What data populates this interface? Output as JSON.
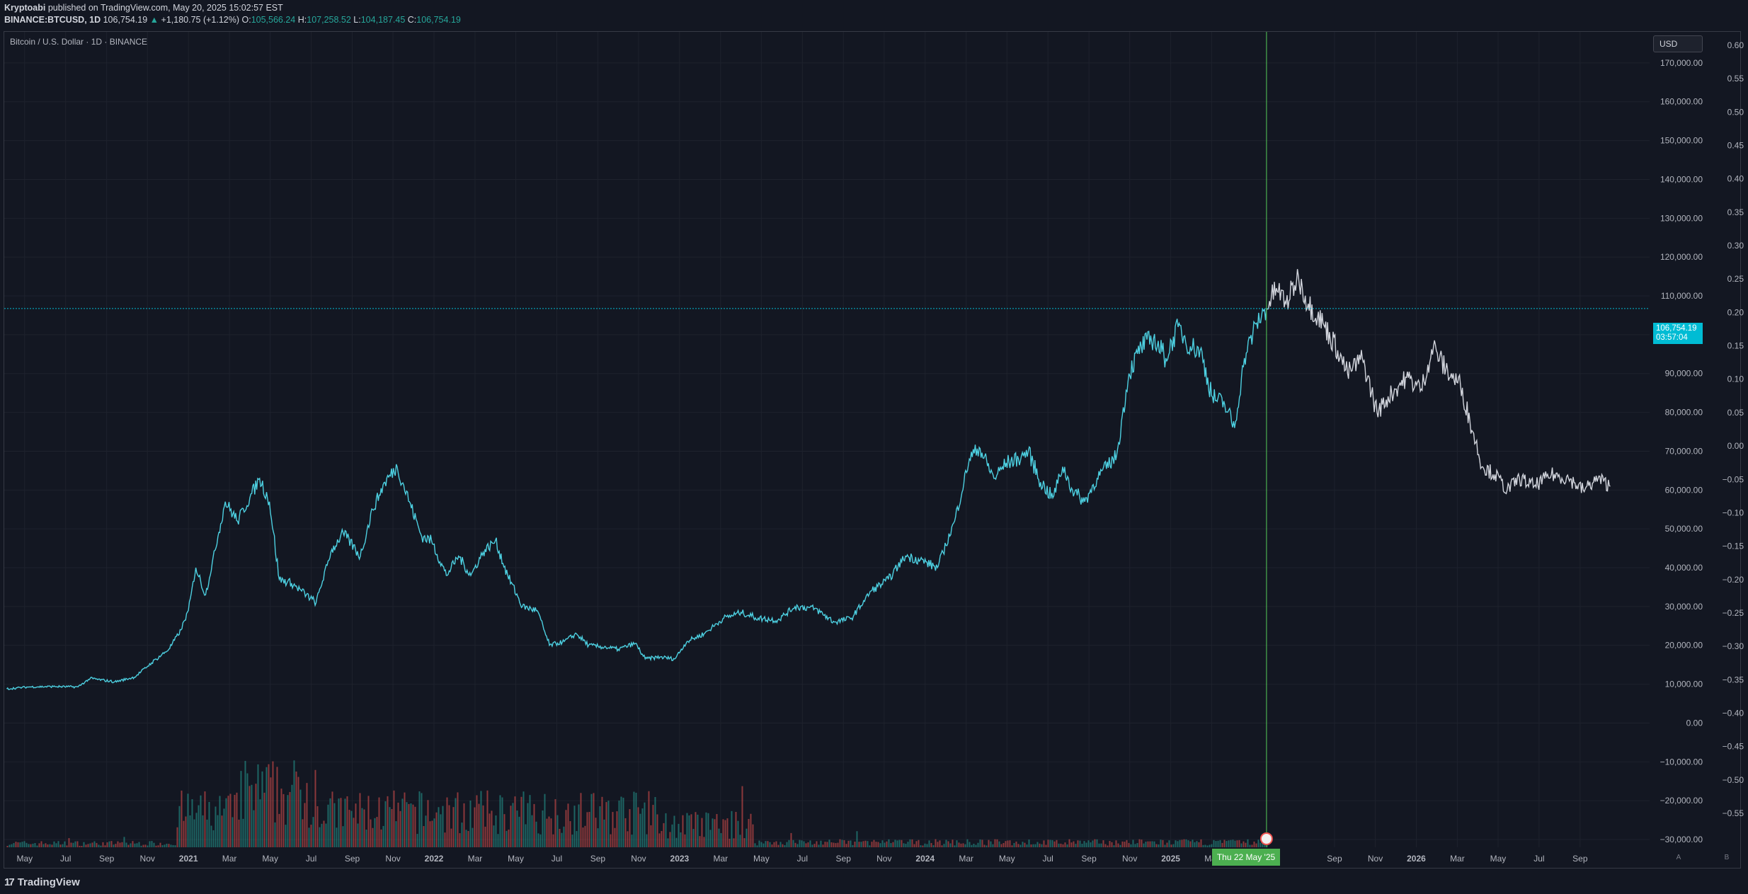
{
  "header": {
    "author": "Kryptoabi",
    "published_text": "published on TradingView.com, May 20, 2025 15:02:57 EST",
    "symbol": "BINANCE:BTCUSD, 1D",
    "last_price": "106,754.19",
    "change": "+1,180.75 (+1.12%)",
    "o_label": "O:",
    "o_value": "105,566.24",
    "h_label": "H:",
    "h_value": "107,258.52",
    "l_label": "L:",
    "l_value": "104,187.45",
    "c_label": "C:",
    "c_value": "106,754.19"
  },
  "chart": {
    "symbol_title": "Bitcoin / U.S. Dollar · 1D · BINANCE",
    "currency": "USD",
    "price_tag": "106,754.19",
    "countdown": "03:57:04",
    "cursor_date": "Thu 22 May '25",
    "scale_auto": "A",
    "scale_log": "B"
  },
  "chart_data": {
    "type": "line",
    "title": "Bitcoin / U.S. Dollar · 1D · BINANCE",
    "price_axis_labels": [
      "170,000.00",
      "160,000.00",
      "150,000.00",
      "140,000.00",
      "130,000.00",
      "120,000.00",
      "110,000.00",
      "100,000.00",
      "90,000.00",
      "80,000.00",
      "70,000.00",
      "60,000.00",
      "50,000.00",
      "40,000.00",
      "30,000.00",
      "20,000.00",
      "10,000.00",
      "0.00",
      "−10,000.00",
      "−20,000.00",
      "−30,000.00"
    ],
    "price_axis_values": [
      170000,
      160000,
      150000,
      140000,
      130000,
      120000,
      110000,
      100000,
      90000,
      80000,
      70000,
      60000,
      50000,
      40000,
      30000,
      20000,
      10000,
      0,
      -10000,
      -20000,
      -30000
    ],
    "secondary_axis_labels": [
      "0.60",
      "0.55",
      "0.50",
      "0.45",
      "0.40",
      "0.35",
      "0.30",
      "0.25",
      "0.20",
      "0.15",
      "0.10",
      "0.05",
      "0.00",
      "−0.05",
      "−0.10",
      "−0.15",
      "−0.20",
      "−0.25",
      "−0.30",
      "−0.35",
      "−0.40",
      "−0.45",
      "−0.50",
      "−0.55"
    ],
    "secondary_axis_values": [
      0.6,
      0.55,
      0.5,
      0.45,
      0.4,
      0.35,
      0.3,
      0.25,
      0.2,
      0.15,
      0.1,
      0.05,
      0,
      -0.05,
      -0.1,
      -0.15,
      -0.2,
      -0.25,
      -0.3,
      -0.35,
      -0.4,
      -0.45,
      -0.5,
      -0.55
    ],
    "time_axis": [
      {
        "label": "May",
        "t": 2020.333,
        "bold": false
      },
      {
        "label": "Jul",
        "t": 2020.5,
        "bold": false
      },
      {
        "label": "Sep",
        "t": 2020.667,
        "bold": false
      },
      {
        "label": "Nov",
        "t": 2020.833,
        "bold": false
      },
      {
        "label": "2021",
        "t": 2021.0,
        "bold": true
      },
      {
        "label": "Mar",
        "t": 2021.167,
        "bold": false
      },
      {
        "label": "May",
        "t": 2021.333,
        "bold": false
      },
      {
        "label": "Jul",
        "t": 2021.5,
        "bold": false
      },
      {
        "label": "Sep",
        "t": 2021.667,
        "bold": false
      },
      {
        "label": "Nov",
        "t": 2021.833,
        "bold": false
      },
      {
        "label": "2022",
        "t": 2022.0,
        "bold": true
      },
      {
        "label": "Mar",
        "t": 2022.167,
        "bold": false
      },
      {
        "label": "May",
        "t": 2022.333,
        "bold": false
      },
      {
        "label": "Jul",
        "t": 2022.5,
        "bold": false
      },
      {
        "label": "Sep",
        "t": 2022.667,
        "bold": false
      },
      {
        "label": "Nov",
        "t": 2022.833,
        "bold": false
      },
      {
        "label": "2023",
        "t": 2023.0,
        "bold": true
      },
      {
        "label": "Mar",
        "t": 2023.167,
        "bold": false
      },
      {
        "label": "May",
        "t": 2023.333,
        "bold": false
      },
      {
        "label": "Jul",
        "t": 2023.5,
        "bold": false
      },
      {
        "label": "Sep",
        "t": 2023.667,
        "bold": false
      },
      {
        "label": "Nov",
        "t": 2023.833,
        "bold": false
      },
      {
        "label": "2024",
        "t": 2024.0,
        "bold": true
      },
      {
        "label": "Mar",
        "t": 2024.167,
        "bold": false
      },
      {
        "label": "May",
        "t": 2024.333,
        "bold": false
      },
      {
        "label": "Jul",
        "t": 2024.5,
        "bold": false
      },
      {
        "label": "Sep",
        "t": 2024.667,
        "bold": false
      },
      {
        "label": "Nov",
        "t": 2024.833,
        "bold": false
      },
      {
        "label": "2025",
        "t": 2025.0,
        "bold": true
      },
      {
        "label": "Mar",
        "t": 2025.167,
        "bold": false
      },
      {
        "label": "Sep",
        "t": 2025.667,
        "bold": false
      },
      {
        "label": "Nov",
        "t": 2025.833,
        "bold": false
      },
      {
        "label": "2026",
        "t": 2026.0,
        "bold": true
      },
      {
        "label": "Mar",
        "t": 2026.167,
        "bold": false
      },
      {
        "label": "May",
        "t": 2026.333,
        "bold": false
      },
      {
        "label": "Jul",
        "t": 2026.5,
        "bold": false
      },
      {
        "label": "Sep",
        "t": 2026.667,
        "bold": false
      }
    ],
    "x_range": [
      2020.25,
      2026.95
    ],
    "y_range": [
      -32000,
      178000
    ],
    "current_price": 106754.19,
    "cursor_t": 2025.39,
    "series": [
      {
        "name": "BTCUSD historical",
        "color": "#4dd0e1",
        "points": [
          [
            2020.26,
            8800
          ],
          [
            2020.35,
            9300
          ],
          [
            2020.45,
            9400
          ],
          [
            2020.55,
            9300
          ],
          [
            2020.6,
            11500
          ],
          [
            2020.7,
            10600
          ],
          [
            2020.78,
            11800
          ],
          [
            2020.85,
            15500
          ],
          [
            2020.92,
            19000
          ],
          [
            2020.97,
            24000
          ],
          [
            2021.0,
            29000
          ],
          [
            2021.03,
            40000
          ],
          [
            2021.07,
            33000
          ],
          [
            2021.12,
            48000
          ],
          [
            2021.15,
            57000
          ],
          [
            2021.2,
            52000
          ],
          [
            2021.25,
            58000
          ],
          [
            2021.29,
            63000
          ],
          [
            2021.33,
            57000
          ],
          [
            2021.37,
            37000
          ],
          [
            2021.42,
            36000
          ],
          [
            2021.48,
            33000
          ],
          [
            2021.52,
            31000
          ],
          [
            2021.58,
            44000
          ],
          [
            2021.63,
            49000
          ],
          [
            2021.7,
            43000
          ],
          [
            2021.75,
            55000
          ],
          [
            2021.8,
            62000
          ],
          [
            2021.85,
            66000
          ],
          [
            2021.9,
            57000
          ],
          [
            2021.95,
            48000
          ],
          [
            2021.99,
            47000
          ],
          [
            2022.05,
            38000
          ],
          [
            2022.1,
            43000
          ],
          [
            2022.15,
            38000
          ],
          [
            2022.2,
            44000
          ],
          [
            2022.25,
            47000
          ],
          [
            2022.3,
            38000
          ],
          [
            2022.36,
            30000
          ],
          [
            2022.42,
            29000
          ],
          [
            2022.47,
            20000
          ],
          [
            2022.53,
            21000
          ],
          [
            2022.58,
            23000
          ],
          [
            2022.63,
            20000
          ],
          [
            2022.7,
            19500
          ],
          [
            2022.75,
            19000
          ],
          [
            2022.82,
            20500
          ],
          [
            2022.86,
            16500
          ],
          [
            2022.92,
            17000
          ],
          [
            2022.98,
            16500
          ],
          [
            2023.03,
            21000
          ],
          [
            2023.1,
            23000
          ],
          [
            2023.18,
            27000
          ],
          [
            2023.25,
            28500
          ],
          [
            2023.32,
            27000
          ],
          [
            2023.4,
            26500
          ],
          [
            2023.47,
            30000
          ],
          [
            2023.55,
            29500
          ],
          [
            2023.63,
            26000
          ],
          [
            2023.7,
            27000
          ],
          [
            2023.78,
            34000
          ],
          [
            2023.85,
            37000
          ],
          [
            2023.92,
            43000
          ],
          [
            2023.98,
            42000
          ],
          [
            2024.05,
            40000
          ],
          [
            2024.12,
            52000
          ],
          [
            2024.18,
            68000
          ],
          [
            2024.22,
            71000
          ],
          [
            2024.28,
            63000
          ],
          [
            2024.33,
            67000
          ],
          [
            2024.38,
            68000
          ],
          [
            2024.42,
            70000
          ],
          [
            2024.47,
            62000
          ],
          [
            2024.52,
            58000
          ],
          [
            2024.56,
            66000
          ],
          [
            2024.6,
            60000
          ],
          [
            2024.65,
            57000
          ],
          [
            2024.7,
            63000
          ],
          [
            2024.78,
            69000
          ],
          [
            2024.83,
            90000
          ],
          [
            2024.88,
            97000
          ],
          [
            2024.93,
            99000
          ],
          [
            2024.98,
            94000
          ],
          [
            2025.03,
            102000
          ],
          [
            2025.08,
            97000
          ],
          [
            2025.12,
            96000
          ],
          [
            2025.17,
            84000
          ],
          [
            2025.22,
            82000
          ],
          [
            2025.26,
            76000
          ],
          [
            2025.3,
            94000
          ],
          [
            2025.35,
            103000
          ],
          [
            2025.39,
            106754
          ]
        ]
      },
      {
        "name": "Projection",
        "color": "#d1d4dc",
        "points": [
          [
            2025.39,
            106754
          ],
          [
            2025.43,
            112000
          ],
          [
            2025.47,
            108000
          ],
          [
            2025.52,
            115000
          ],
          [
            2025.56,
            108000
          ],
          [
            2025.62,
            103000
          ],
          [
            2025.68,
            96000
          ],
          [
            2025.72,
            90000
          ],
          [
            2025.78,
            94000
          ],
          [
            2025.84,
            80000
          ],
          [
            2025.9,
            85000
          ],
          [
            2025.96,
            89000
          ],
          [
            2026.02,
            86000
          ],
          [
            2026.07,
            97000
          ],
          [
            2026.12,
            91000
          ],
          [
            2026.18,
            87000
          ],
          [
            2026.23,
            75000
          ],
          [
            2026.27,
            66000
          ],
          [
            2026.32,
            64000
          ],
          [
            2026.37,
            60000
          ],
          [
            2026.42,
            63000
          ],
          [
            2026.48,
            61000
          ],
          [
            2026.55,
            64000
          ],
          [
            2026.62,
            63000
          ],
          [
            2026.68,
            60000
          ],
          [
            2026.74,
            63000
          ],
          [
            2026.79,
            61000
          ]
        ]
      }
    ]
  },
  "footer": {
    "brand": "TradingView",
    "logo_mark": "17"
  },
  "colors": {
    "background": "#131722",
    "grid": "#1e222d",
    "up": "#26a69a",
    "down": "#ef5350",
    "cursor": "#4caf50",
    "price_line": "#00bcd4"
  }
}
